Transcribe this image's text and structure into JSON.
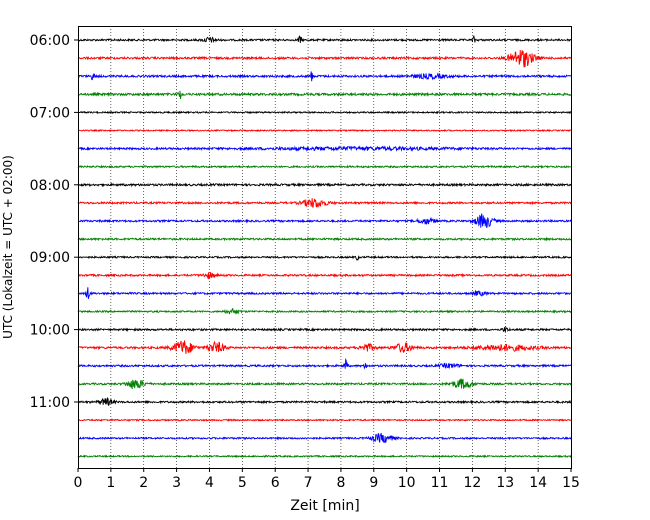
{
  "chart_data": {
    "type": "line",
    "title": "",
    "xlabel": "Zeit  [min]",
    "ylabel": "UTC (Lokalzeit = UTC + 02:00)",
    "xlim": [
      0,
      15
    ],
    "x_ticks": [
      0,
      1,
      2,
      3,
      4,
      5,
      6,
      7,
      8,
      9,
      10,
      11,
      12,
      13,
      14,
      15
    ],
    "x_tick_labels": [
      "0",
      "1",
      "2",
      "3",
      "4",
      "5",
      "6",
      "7",
      "8",
      "9",
      "10",
      "11",
      "12",
      "13",
      "14",
      "15"
    ],
    "y_tick_labels": [
      "06:00",
      "07:00",
      "08:00",
      "09:00",
      "10:00",
      "11:00"
    ],
    "grid": "vertical dotted lines at each minute",
    "trace_interval_minutes": 15,
    "color_cycle": [
      "#000000",
      "#ff0000",
      "#0000ff",
      "#008000"
    ],
    "traces": [
      {
        "start": "06:00",
        "color": "#000000",
        "noise": 0.45,
        "events": [
          {
            "t": 4.0,
            "amp": 1.2,
            "width": 0.2
          },
          {
            "t": 6.75,
            "amp": 2.0,
            "width": 0.05
          },
          {
            "t": 12.05,
            "amp": 1.6,
            "width": 0.04
          }
        ]
      },
      {
        "start": "06:15",
        "color": "#ff0000",
        "noise": 0.5,
        "events": [
          {
            "t": 13.5,
            "amp": 4.5,
            "width": 0.35
          }
        ]
      },
      {
        "start": "06:30",
        "color": "#0000ff",
        "noise": 0.5,
        "events": [
          {
            "t": 0.45,
            "amp": 2.3,
            "width": 0.04
          },
          {
            "t": 7.1,
            "amp": 2.8,
            "width": 0.04
          },
          {
            "t": 10.7,
            "amp": 1.0,
            "width": 0.5
          }
        ]
      },
      {
        "start": "06:45",
        "color": "#008000",
        "noise": 0.55,
        "events": [
          {
            "t": 3.1,
            "amp": 2.4,
            "width": 0.05
          }
        ]
      },
      {
        "start": "07:00",
        "color": "#000000",
        "noise": 0.35,
        "events": []
      },
      {
        "start": "07:15",
        "color": "#ff0000",
        "noise": 0.3,
        "events": []
      },
      {
        "start": "07:30",
        "color": "#0000ff",
        "noise": 0.45,
        "events": [
          {
            "t": 8.5,
            "amp": 0.6,
            "width": 3.0
          }
        ]
      },
      {
        "start": "07:45",
        "color": "#008000",
        "noise": 0.4,
        "events": []
      },
      {
        "start": "08:00",
        "color": "#000000",
        "noise": 0.5,
        "events": []
      },
      {
        "start": "08:15",
        "color": "#ff0000",
        "noise": 0.45,
        "events": [
          {
            "t": 7.2,
            "amp": 2.2,
            "width": 0.35
          }
        ]
      },
      {
        "start": "08:30",
        "color": "#0000ff",
        "noise": 0.45,
        "events": [
          {
            "t": 10.6,
            "amp": 1.4,
            "width": 0.25
          },
          {
            "t": 12.35,
            "amp": 3.6,
            "width": 0.25
          }
        ]
      },
      {
        "start": "08:45",
        "color": "#008000",
        "noise": 0.45,
        "events": []
      },
      {
        "start": "09:00",
        "color": "#000000",
        "noise": 0.4,
        "events": [
          {
            "t": 8.5,
            "amp": 1.4,
            "width": 0.04
          }
        ]
      },
      {
        "start": "09:15",
        "color": "#ff0000",
        "noise": 0.45,
        "events": [
          {
            "t": 4.0,
            "amp": 1.2,
            "width": 0.2
          }
        ]
      },
      {
        "start": "09:30",
        "color": "#0000ff",
        "noise": 0.45,
        "events": [
          {
            "t": 0.3,
            "amp": 3.6,
            "width": 0.05
          },
          {
            "t": 12.2,
            "amp": 1.0,
            "width": 0.2
          }
        ]
      },
      {
        "start": "09:45",
        "color": "#008000",
        "noise": 0.4,
        "events": [
          {
            "t": 4.7,
            "amp": 1.2,
            "width": 0.2
          }
        ]
      },
      {
        "start": "10:00",
        "color": "#000000",
        "noise": 0.45,
        "events": [
          {
            "t": 13.0,
            "amp": 1.0,
            "width": 0.1
          }
        ]
      },
      {
        "start": "10:15",
        "color": "#ff0000",
        "noise": 0.5,
        "events": [
          {
            "t": 3.2,
            "amp": 3.5,
            "width": 0.3
          },
          {
            "t": 4.2,
            "amp": 2.6,
            "width": 0.25
          },
          {
            "t": 8.8,
            "amp": 1.8,
            "width": 0.2
          },
          {
            "t": 9.9,
            "amp": 2.3,
            "width": 0.25
          },
          {
            "t": 13.0,
            "amp": 1.4,
            "width": 0.9
          }
        ]
      },
      {
        "start": "10:30",
        "color": "#0000ff",
        "noise": 0.45,
        "events": [
          {
            "t": 8.15,
            "amp": 3.2,
            "width": 0.05
          },
          {
            "t": 8.75,
            "amp": 1.6,
            "width": 0.04
          },
          {
            "t": 11.3,
            "amp": 1.0,
            "width": 0.3
          }
        ]
      },
      {
        "start": "10:45",
        "color": "#008000",
        "noise": 0.45,
        "events": [
          {
            "t": 1.75,
            "amp": 2.4,
            "width": 0.25
          },
          {
            "t": 11.7,
            "amp": 2.4,
            "width": 0.3
          }
        ]
      },
      {
        "start": "11:00",
        "color": "#000000",
        "noise": 0.45,
        "events": [
          {
            "t": 0.85,
            "amp": 1.8,
            "width": 0.2
          }
        ]
      },
      {
        "start": "11:15",
        "color": "#ff0000",
        "noise": 0.35,
        "events": []
      },
      {
        "start": "11:30",
        "color": "#0000ff",
        "noise": 0.4,
        "events": [
          {
            "t": 9.25,
            "amp": 2.2,
            "width": 0.3
          }
        ]
      },
      {
        "start": "11:45",
        "color": "#008000",
        "noise": 0.35,
        "events": []
      }
    ]
  }
}
